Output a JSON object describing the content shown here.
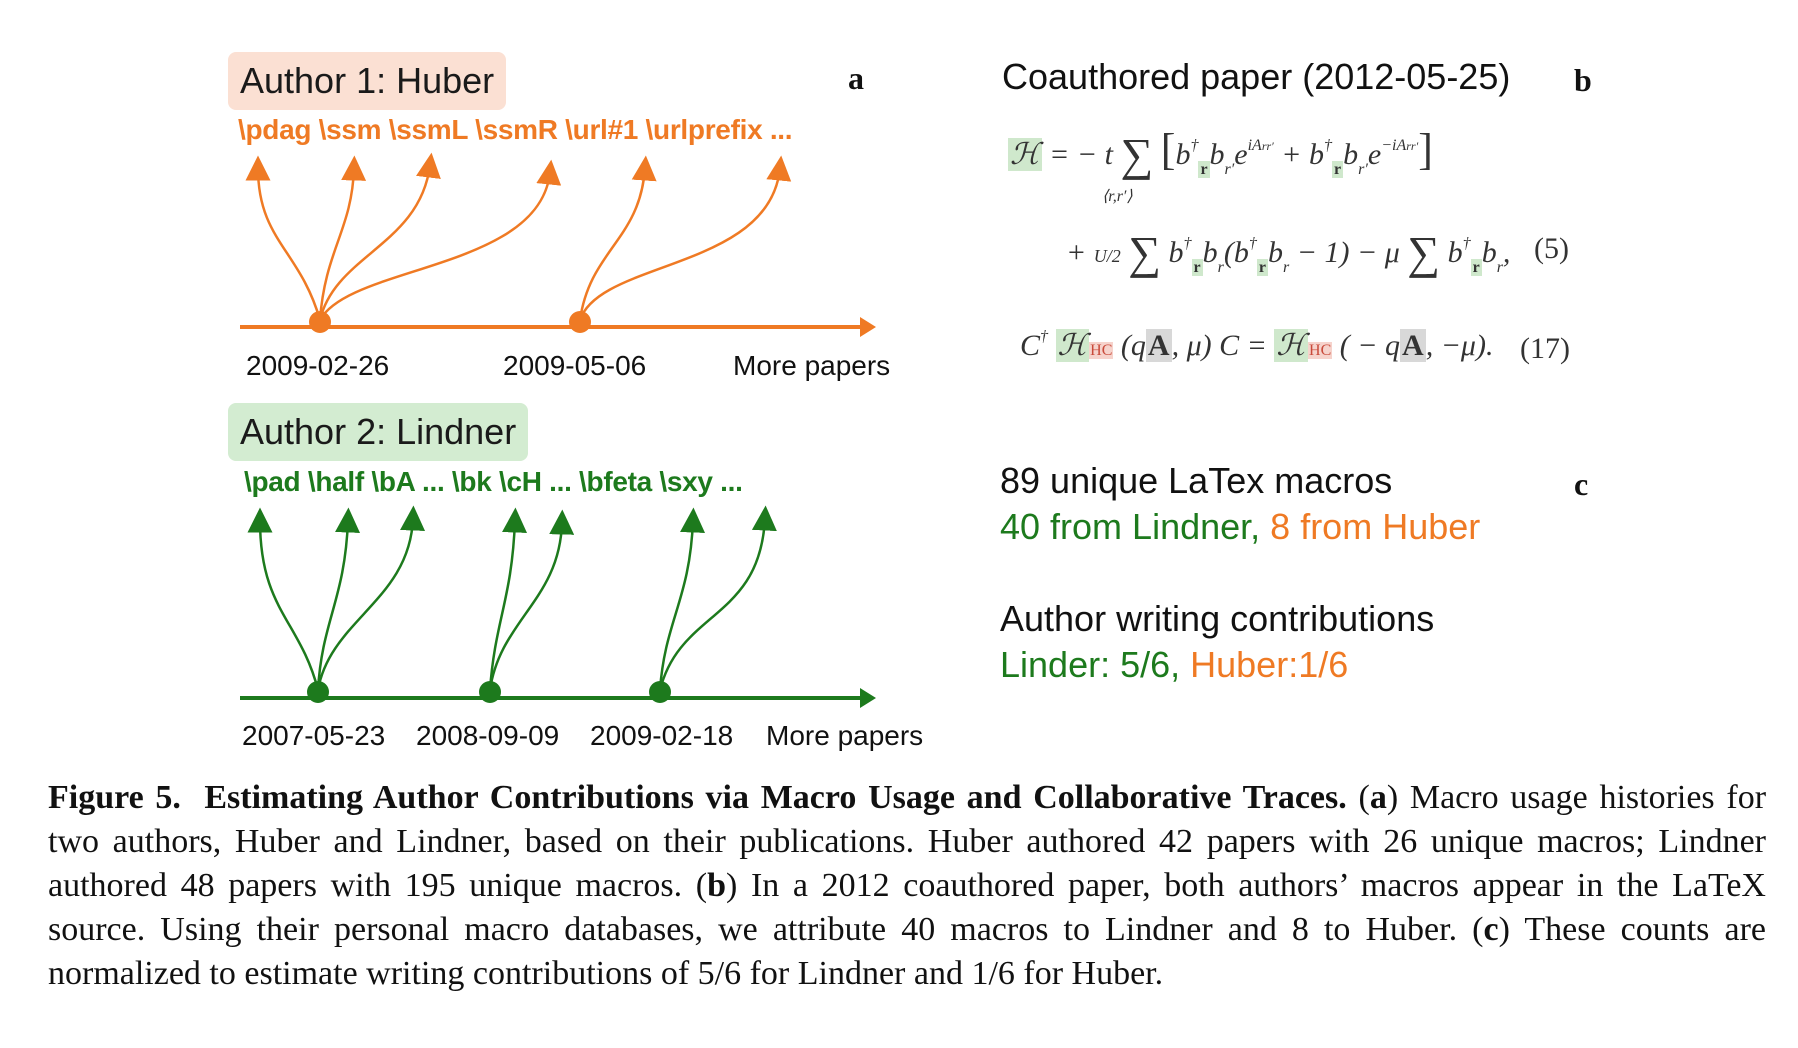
{
  "panel_a": {
    "letter": "a",
    "author1": {
      "label": "Author 1: Huber",
      "macros": "\\pdag \\ssm \\ssmL \\ssmR \\url#1 \\urlprefix ...",
      "dates": [
        "2009-02-26",
        "2009-05-06",
        "More papers"
      ],
      "color": "#ef7a24",
      "highlight": "#fbe0d3"
    },
    "author2": {
      "label": "Author 2: Lindner",
      "macros": "\\pad \\half \\bA ... \\bk \\cH ... \\bfeta \\sxy ...",
      "dates": [
        "2007-05-23",
        "2008-09-09",
        "2009-02-18",
        "More papers"
      ],
      "color": "#1d7a1d",
      "highlight": "#d3ecd1"
    }
  },
  "panel_b": {
    "letter": "b",
    "title": "Coauthored paper (2012-05-25)",
    "eq5_number": "(5)",
    "eq17_number": "(17)"
  },
  "panel_c": {
    "letter": "c",
    "macros_total": "89 unique LaTex macros",
    "from_lindner": "40 from Lindner,",
    "from_huber": "8 from Huber",
    "contrib_title": "Author writing contributions",
    "contrib_lindner": "Linder: 5/6,",
    "contrib_huber": "Huber:1/6"
  },
  "caption": {
    "figure_label": "Figure 5.",
    "bold_title": "Estimating Author Contributions via Macro Usage and Collaborative Traces.",
    "part_a_label": "a",
    "part_a_text": "Macro usage histories for two authors, Huber and Lindner, based on their publications. Huber authored 42 papers with 26 unique macros; Lindner authored 48 papers with 195 unique macros.",
    "part_b_label": "b",
    "part_b_text": "In a 2012 coauthored paper, both authors’ macros appear in the LaTeX source. Using their personal macro databases, we attribute 40 macros to Lindner and 8 to Huber.",
    "part_c_label": "c",
    "part_c_text": "These counts are normalized to estimate writing contributions of 5/6 for Lindner and 1/6 for Huber."
  }
}
